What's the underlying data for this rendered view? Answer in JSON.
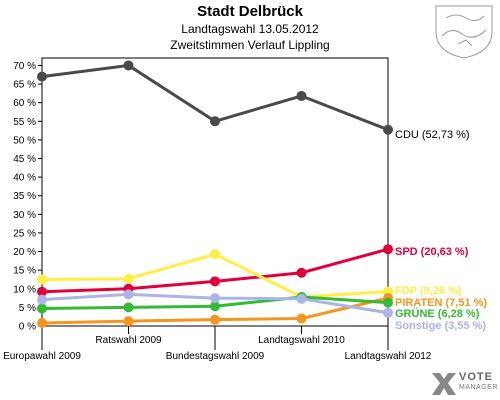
{
  "header": {
    "title": "Stadt Delbrück",
    "subtitle": "Landtagswahl 13.05.2012",
    "subtitle2": "Zweitstimmen Verlauf Lippling"
  },
  "watermark": {
    "brand_top": "VOTE",
    "brand_bottom": "MANAGER",
    "icon": "vote-manager-logo-icon"
  },
  "coat_of_arms": {
    "icon": "coat-of-arms-icon"
  },
  "chart_data": {
    "type": "line",
    "categories": [
      "Europawahl 2009",
      "Ratswahl 2009",
      "Bundestagswahl 2009",
      "Landtagswahl 2010",
      "Landtagswahl 2012"
    ],
    "ylim": [
      0,
      72
    ],
    "yticks": [
      0,
      5,
      10,
      15,
      20,
      25,
      30,
      35,
      40,
      45,
      50,
      55,
      60,
      65,
      70
    ],
    "ytick_labels": [
      "0 %",
      "5 %",
      "10 %",
      "15 %",
      "20 %",
      "25 %",
      "30 %",
      "35 %",
      "40 %",
      "45 %",
      "50 %",
      "55 %",
      "60 %",
      "65 %",
      "70 %"
    ],
    "grid": false,
    "series": [
      {
        "name": "CDU",
        "label": "CDU (52,73 %)",
        "color": "#4a4a4a",
        "values": [
          67.0,
          70.0,
          55.0,
          61.8,
          52.73
        ]
      },
      {
        "name": "SPD",
        "label": "SPD (20,63 %)",
        "color": "#e2003a",
        "values": [
          9.2,
          10.0,
          12.0,
          14.3,
          20.63
        ]
      },
      {
        "name": "FDP",
        "label": "FDP (9,26 %)",
        "color": "#ffee44",
        "values": [
          12.5,
          12.7,
          19.3,
          7.8,
          9.26
        ]
      },
      {
        "name": "PIRATEN",
        "label": "PIRATEN (7,51 %)",
        "color": "#f7941d",
        "values": [
          0.8,
          1.3,
          1.7,
          2.0,
          7.51
        ]
      },
      {
        "name": "GRÜNE",
        "label": "GRÜNE (6,28 %)",
        "color": "#33bb33",
        "values": [
          4.7,
          5.0,
          5.3,
          7.8,
          6.28
        ]
      },
      {
        "name": "Sonstige",
        "label": "Sonstige (3,55 %)",
        "color": "#aab4e6",
        "values": [
          7.1,
          8.5,
          7.5,
          7.3,
          3.55
        ]
      }
    ]
  }
}
